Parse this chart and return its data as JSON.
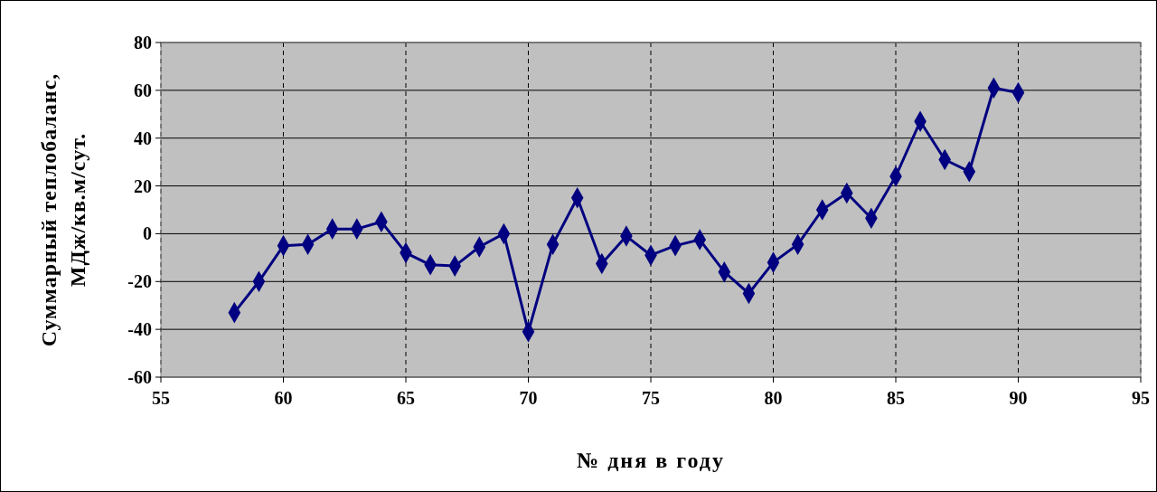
{
  "chart_data": {
    "type": "line",
    "xlabel": "№ дня в году",
    "ylabel": "Суммарный теплобаланс, МДж/кв.м/сут.",
    "x": [
      58,
      59,
      60,
      61,
      62,
      63,
      64,
      65,
      66,
      67,
      68,
      69,
      70,
      71,
      72,
      73,
      74,
      75,
      76,
      77,
      78,
      79,
      80,
      81,
      82,
      83,
      84,
      85,
      86,
      87,
      88,
      89,
      90
    ],
    "series": [
      {
        "color": "#000080",
        "values": [
          -33,
          -20,
          -5,
          -4.5,
          2,
          2,
          5,
          -8,
          -13,
          -13.5,
          -5.5,
          0,
          -41,
          -4.5,
          15,
          -12.5,
          -1,
          -9,
          -5,
          -2.5,
          -16,
          -25,
          -12,
          -4.5,
          10,
          17,
          6.5,
          24,
          47,
          31,
          26,
          61,
          59
        ]
      }
    ],
    "xlim": [
      55,
      95
    ],
    "xticks": [
      55,
      60,
      65,
      70,
      75,
      80,
      85,
      90,
      95
    ],
    "ylim": [
      -60,
      80
    ],
    "yticks": [
      -60,
      -40,
      -20,
      0,
      20,
      40,
      60,
      80
    ],
    "grid": true,
    "marker": "diamond",
    "line_style": "solid"
  }
}
